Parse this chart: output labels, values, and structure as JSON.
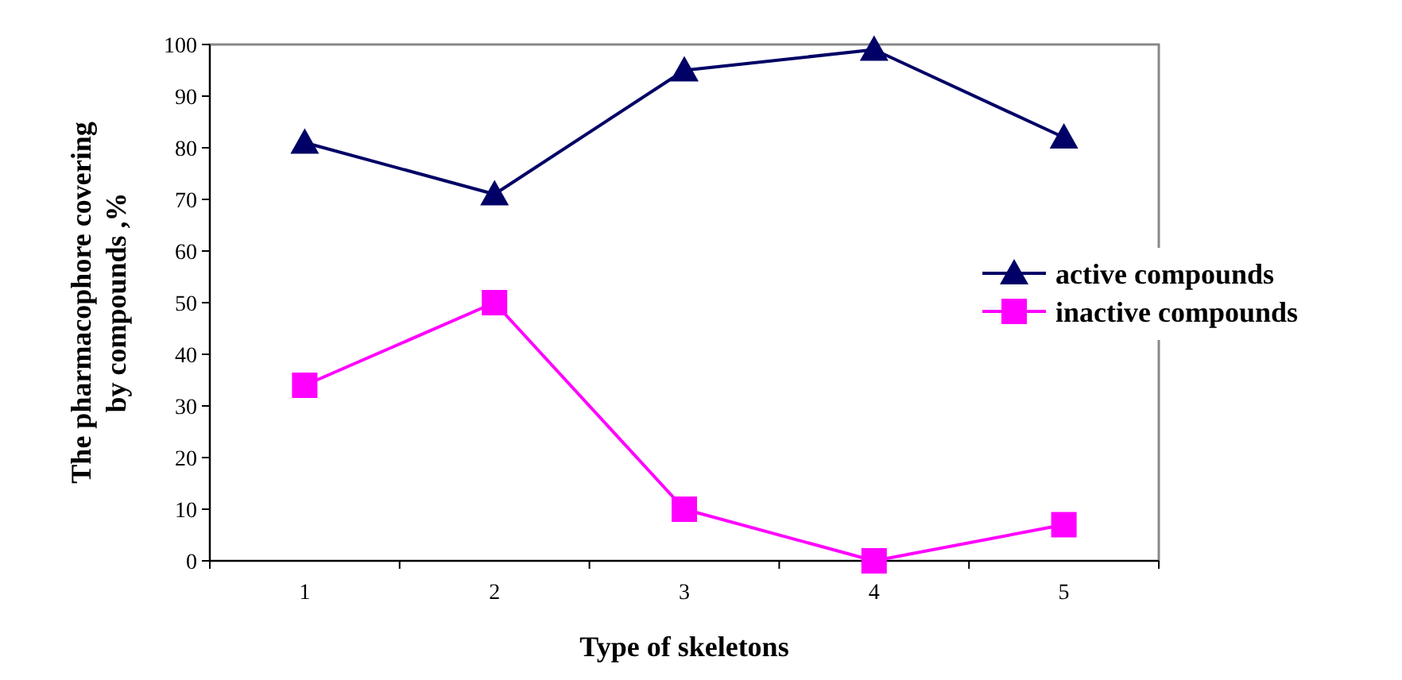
{
  "chart_data": {
    "type": "line",
    "xlabel": "Type of skeletons",
    "ylabel": "The pharmacophore covering by compounds ,%",
    "categories": [
      "1",
      "2",
      "3",
      "4",
      "5"
    ],
    "series": [
      {
        "name": "active compounds",
        "color": "#000066",
        "marker": "triangle",
        "values": [
          81,
          71,
          95,
          99,
          82
        ]
      },
      {
        "name": "inactive compounds",
        "color": "#ff00ff",
        "marker": "square",
        "values": [
          34,
          50,
          10,
          0,
          7
        ]
      }
    ],
    "ylim": [
      0,
      100
    ],
    "yticks": [
      0,
      10,
      20,
      30,
      40,
      50,
      60,
      70,
      80,
      90,
      100
    ],
    "grid": false,
    "legend": "right"
  }
}
